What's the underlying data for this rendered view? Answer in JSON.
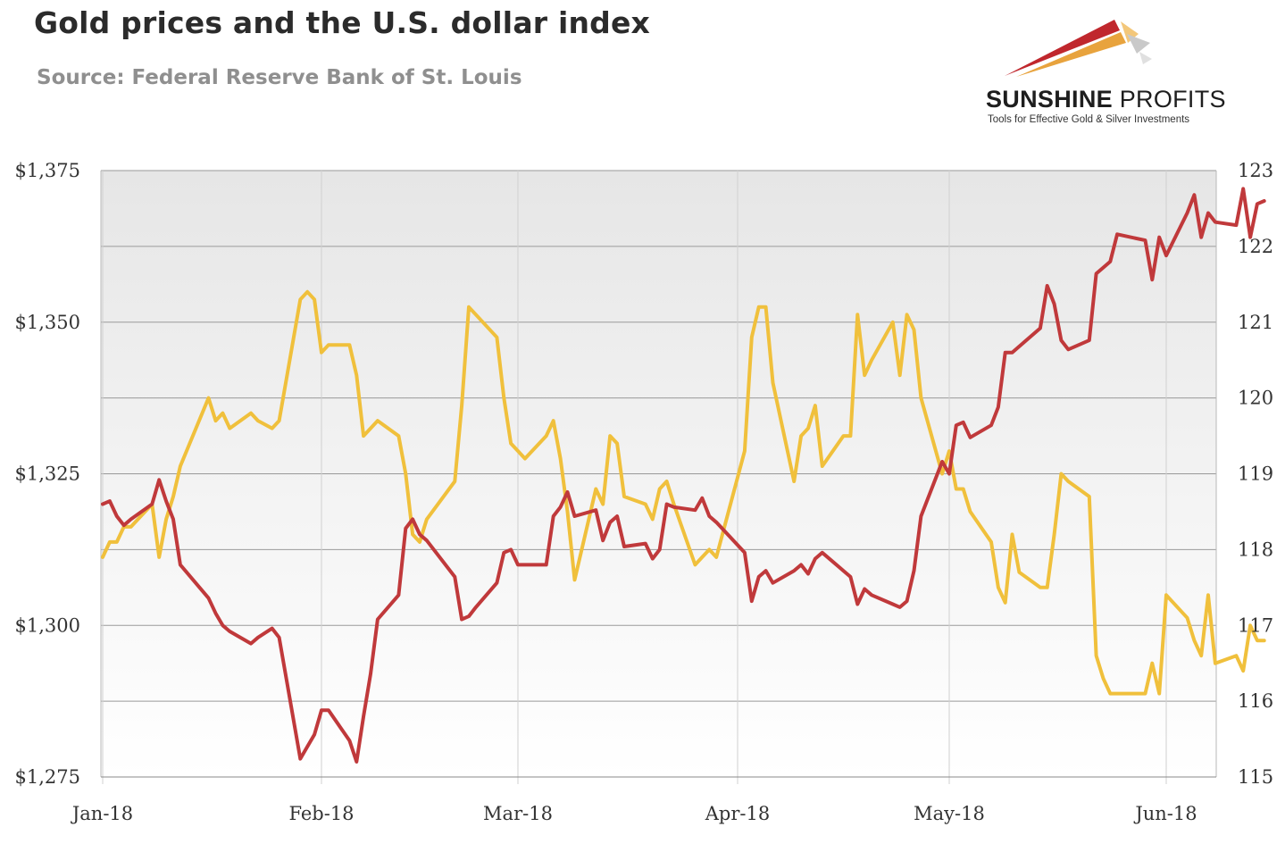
{
  "header": {
    "title": "Gold prices and the U.S. dollar index",
    "subtitle": "Source: Federal Reserve Bank of St. Louis"
  },
  "logo": {
    "name_bold": "SUNSHINE",
    "name_rest": "PROFITS",
    "tagline": "Tools for Effective Gold & Silver Investments",
    "colors": [
      "#c0272d",
      "#e8a33d",
      "#bdbdbd"
    ]
  },
  "chart_data": {
    "type": "line",
    "title": "Gold prices and the U.S. dollar index",
    "subtitle": "Source: Federal Reserve Bank of St. Louis",
    "xlabel": "",
    "ylabel_left": "",
    "ylabel_right": "",
    "x_ticks": [
      "Jan-18",
      "Feb-18",
      "Mar-18",
      "Apr-18",
      "May-18",
      "Jun-18"
    ],
    "x_range": [
      "2018-01-01",
      "2018-06-11"
    ],
    "y_left": {
      "ticks": [
        "$1,275",
        "$1,300",
        "$1,325",
        "$1,350",
        "$1,375"
      ],
      "range": [
        1275,
        1375
      ]
    },
    "y_right": {
      "ticks": [
        "115",
        "116",
        "117",
        "118",
        "119",
        "120",
        "121",
        "122",
        "123"
      ],
      "range": [
        115,
        123
      ]
    },
    "grid": true,
    "legend": "none",
    "series": [
      {
        "axis": "left",
        "color": "#c0393b",
        "points": [
          [
            "2018-01-01",
            1320
          ],
          [
            "2018-01-02",
            1320.5
          ],
          [
            "2018-01-03",
            1318
          ],
          [
            "2018-01-04",
            1316.5
          ],
          [
            "2018-01-05",
            1317.5
          ],
          [
            "2018-01-08",
            1320
          ],
          [
            "2018-01-09",
            1324
          ],
          [
            "2018-01-10",
            1320.5
          ],
          [
            "2018-01-11",
            1317.5
          ],
          [
            "2018-01-12",
            1310
          ],
          [
            "2018-01-16",
            1304.5
          ],
          [
            "2018-01-17",
            1302
          ],
          [
            "2018-01-18",
            1300
          ],
          [
            "2018-01-19",
            1299
          ],
          [
            "2018-01-22",
            1297
          ],
          [
            "2018-01-23",
            1298
          ],
          [
            "2018-01-25",
            1299.5
          ],
          [
            "2018-01-26",
            1298
          ],
          [
            "2018-01-29",
            1278
          ],
          [
            "2018-01-30",
            1280
          ],
          [
            "2018-01-31",
            1282
          ],
          [
            "2018-02-01",
            1286
          ],
          [
            "2018-02-02",
            1286
          ],
          [
            "2018-02-05",
            1281
          ],
          [
            "2018-02-06",
            1277.5
          ],
          [
            "2018-02-07",
            1285
          ],
          [
            "2018-02-08",
            1292
          ],
          [
            "2018-02-09",
            1301
          ],
          [
            "2018-02-12",
            1305
          ],
          [
            "2018-02-13",
            1316
          ],
          [
            "2018-02-14",
            1317.5
          ],
          [
            "2018-02-15",
            1315
          ],
          [
            "2018-02-16",
            1314
          ],
          [
            "2018-02-20",
            1308
          ],
          [
            "2018-02-21",
            1301
          ],
          [
            "2018-02-22",
            1301.5
          ],
          [
            "2018-02-23",
            1303
          ],
          [
            "2018-02-26",
            1307
          ],
          [
            "2018-02-27",
            1312
          ],
          [
            "2018-02-28",
            1312.5
          ],
          [
            "2018-03-01",
            1310
          ],
          [
            "2018-03-02",
            1310
          ],
          [
            "2018-03-05",
            1310
          ],
          [
            "2018-03-06",
            1318
          ],
          [
            "2018-03-07",
            1319.5
          ],
          [
            "2018-03-08",
            1322
          ],
          [
            "2018-03-09",
            1318
          ],
          [
            "2018-03-12",
            1319
          ],
          [
            "2018-03-13",
            1314
          ],
          [
            "2018-03-14",
            1317
          ],
          [
            "2018-03-15",
            1318
          ],
          [
            "2018-03-16",
            1313
          ],
          [
            "2018-03-19",
            1313.5
          ],
          [
            "2018-03-20",
            1311
          ],
          [
            "2018-03-21",
            1312.5
          ],
          [
            "2018-03-22",
            1320
          ],
          [
            "2018-03-23",
            1319.5
          ],
          [
            "2018-03-26",
            1319
          ],
          [
            "2018-03-27",
            1321
          ],
          [
            "2018-03-28",
            1318
          ],
          [
            "2018-03-29",
            1317
          ],
          [
            "2018-04-02",
            1312
          ],
          [
            "2018-04-03",
            1304
          ],
          [
            "2018-04-04",
            1308
          ],
          [
            "2018-04-05",
            1309
          ],
          [
            "2018-04-06",
            1307
          ],
          [
            "2018-04-09",
            1309
          ],
          [
            "2018-04-10",
            1310
          ],
          [
            "2018-04-11",
            1308.5
          ],
          [
            "2018-04-12",
            1311
          ],
          [
            "2018-04-13",
            1312
          ],
          [
            "2018-04-16",
            1309
          ],
          [
            "2018-04-17",
            1308
          ],
          [
            "2018-04-18",
            1303.5
          ],
          [
            "2018-04-19",
            1306
          ],
          [
            "2018-04-20",
            1305
          ],
          [
            "2018-04-23",
            1303.5
          ],
          [
            "2018-04-24",
            1303
          ],
          [
            "2018-04-25",
            1304
          ],
          [
            "2018-04-26",
            1309
          ],
          [
            "2018-04-27",
            1318
          ],
          [
            "2018-04-30",
            1327
          ],
          [
            "2018-05-01",
            1325
          ],
          [
            "2018-05-02",
            1333
          ],
          [
            "2018-05-03",
            1333.5
          ],
          [
            "2018-05-04",
            1331
          ],
          [
            "2018-05-07",
            1333
          ],
          [
            "2018-05-08",
            1336
          ],
          [
            "2018-05-09",
            1345
          ],
          [
            "2018-05-10",
            1345
          ],
          [
            "2018-05-14",
            1349
          ],
          [
            "2018-05-15",
            1356
          ],
          [
            "2018-05-16",
            1353
          ],
          [
            "2018-05-17",
            1347
          ],
          [
            "2018-05-18",
            1345.5
          ],
          [
            "2018-05-21",
            1347
          ],
          [
            "2018-05-22",
            1358
          ],
          [
            "2018-05-23",
            1359
          ],
          [
            "2018-05-24",
            1360
          ],
          [
            "2018-05-25",
            1364.5
          ],
          [
            "2018-05-29",
            1363.5
          ],
          [
            "2018-05-30",
            1357
          ],
          [
            "2018-05-31",
            1364
          ],
          [
            "2018-06-01",
            1361
          ],
          [
            "2018-06-04",
            1368
          ],
          [
            "2018-06-05",
            1371
          ],
          [
            "2018-06-06",
            1364
          ],
          [
            "2018-06-07",
            1368
          ],
          [
            "2018-06-08",
            1366.5
          ],
          [
            "2018-06-11",
            1366
          ],
          [
            "2018-06-12",
            1372
          ],
          [
            "2018-06-13",
            1364
          ],
          [
            "2018-06-14",
            1369.5
          ],
          [
            "2018-06-15",
            1370
          ]
        ]
      },
      {
        "axis": "right",
        "color": "#f0c03c",
        "points": [
          [
            "2018-01-01",
            117.9
          ],
          [
            "2018-01-02",
            118.1
          ],
          [
            "2018-01-03",
            118.1
          ],
          [
            "2018-01-04",
            118.3
          ],
          [
            "2018-01-05",
            118.3
          ],
          [
            "2018-01-08",
            118.6
          ],
          [
            "2018-01-09",
            117.9
          ],
          [
            "2018-01-10",
            118.4
          ],
          [
            "2018-01-11",
            118.7
          ],
          [
            "2018-01-12",
            119.1
          ],
          [
            "2018-01-16",
            120
          ],
          [
            "2018-01-17",
            119.7
          ],
          [
            "2018-01-18",
            119.8
          ],
          [
            "2018-01-19",
            119.6
          ],
          [
            "2018-01-22",
            119.8
          ],
          [
            "2018-01-23",
            119.7
          ],
          [
            "2018-01-25",
            119.6
          ],
          [
            "2018-01-26",
            119.7
          ],
          [
            "2018-01-29",
            121.3
          ],
          [
            "2018-01-30",
            121.4
          ],
          [
            "2018-01-31",
            121.3
          ],
          [
            "2018-02-01",
            120.6
          ],
          [
            "2018-02-02",
            120.7
          ],
          [
            "2018-02-05",
            120.7
          ],
          [
            "2018-02-06",
            120.3
          ],
          [
            "2018-02-07",
            119.5
          ],
          [
            "2018-02-08",
            119.6
          ],
          [
            "2018-02-09",
            119.7
          ],
          [
            "2018-02-12",
            119.5
          ],
          [
            "2018-02-13",
            119
          ],
          [
            "2018-02-14",
            118.2
          ],
          [
            "2018-02-15",
            118.1
          ],
          [
            "2018-02-16",
            118.4
          ],
          [
            "2018-02-20",
            118.9
          ],
          [
            "2018-02-21",
            119.9
          ],
          [
            "2018-02-22",
            121.2
          ],
          [
            "2018-02-23",
            121.1
          ],
          [
            "2018-02-26",
            120.8
          ],
          [
            "2018-02-27",
            120
          ],
          [
            "2018-02-28",
            119.4
          ],
          [
            "2018-03-01",
            119.3
          ],
          [
            "2018-03-02",
            119.2
          ],
          [
            "2018-03-05",
            119.5
          ],
          [
            "2018-03-06",
            119.7
          ],
          [
            "2018-03-07",
            119.2
          ],
          [
            "2018-03-08",
            118.5
          ],
          [
            "2018-03-09",
            117.6
          ],
          [
            "2018-03-12",
            118.8
          ],
          [
            "2018-03-13",
            118.6
          ],
          [
            "2018-03-14",
            119.5
          ],
          [
            "2018-03-15",
            119.4
          ],
          [
            "2018-03-16",
            118.7
          ],
          [
            "2018-03-19",
            118.6
          ],
          [
            "2018-03-20",
            118.4
          ],
          [
            "2018-03-21",
            118.8
          ],
          [
            "2018-03-22",
            118.9
          ],
          [
            "2018-03-23",
            118.6
          ],
          [
            "2018-03-26",
            117.8
          ],
          [
            "2018-03-27",
            117.9
          ],
          [
            "2018-03-28",
            118
          ],
          [
            "2018-03-29",
            117.9
          ],
          [
            "2018-04-02",
            119.3
          ],
          [
            "2018-04-03",
            120.8
          ],
          [
            "2018-04-04",
            121.2
          ],
          [
            "2018-04-05",
            121.2
          ],
          [
            "2018-04-06",
            120.2
          ],
          [
            "2018-04-09",
            118.9
          ],
          [
            "2018-04-10",
            119.5
          ],
          [
            "2018-04-11",
            119.6
          ],
          [
            "2018-04-12",
            119.9
          ],
          [
            "2018-04-13",
            119.1
          ],
          [
            "2018-04-16",
            119.5
          ],
          [
            "2018-04-17",
            119.5
          ],
          [
            "2018-04-18",
            121.1
          ],
          [
            "2018-04-19",
            120.3
          ],
          [
            "2018-04-20",
            120.5
          ],
          [
            "2018-04-23",
            121
          ],
          [
            "2018-04-24",
            120.3
          ],
          [
            "2018-04-25",
            121.1
          ],
          [
            "2018-04-26",
            120.9
          ],
          [
            "2018-04-27",
            120
          ],
          [
            "2018-04-30",
            119
          ],
          [
            "2018-05-01",
            119.3
          ],
          [
            "2018-05-02",
            118.8
          ],
          [
            "2018-05-03",
            118.8
          ],
          [
            "2018-05-04",
            118.5
          ],
          [
            "2018-05-07",
            118.1
          ],
          [
            "2018-05-08",
            117.5
          ],
          [
            "2018-05-09",
            117.3
          ],
          [
            "2018-05-10",
            118.2
          ],
          [
            "2018-05-11",
            117.7
          ],
          [
            "2018-05-14",
            117.5
          ],
          [
            "2018-05-15",
            117.5
          ],
          [
            "2018-05-16",
            118.2
          ],
          [
            "2018-05-17",
            119
          ],
          [
            "2018-05-18",
            118.9
          ],
          [
            "2018-05-21",
            118.7
          ],
          [
            "2018-05-22",
            116.6
          ],
          [
            "2018-05-23",
            116.3
          ],
          [
            "2018-05-24",
            116.1
          ],
          [
            "2018-05-25",
            116.1
          ],
          [
            "2018-05-29",
            116.1
          ],
          [
            "2018-05-30",
            116.5
          ],
          [
            "2018-05-31",
            116.1
          ],
          [
            "2018-06-01",
            117.4
          ],
          [
            "2018-06-04",
            117.1
          ],
          [
            "2018-06-05",
            116.8
          ],
          [
            "2018-06-06",
            116.6
          ],
          [
            "2018-06-07",
            117.4
          ],
          [
            "2018-06-08",
            116.5
          ],
          [
            "2018-06-11",
            116.6
          ],
          [
            "2018-06-12",
            116.4
          ],
          [
            "2018-06-13",
            117
          ],
          [
            "2018-06-14",
            116.8
          ],
          [
            "2018-06-15",
            116.8
          ]
        ]
      }
    ]
  }
}
